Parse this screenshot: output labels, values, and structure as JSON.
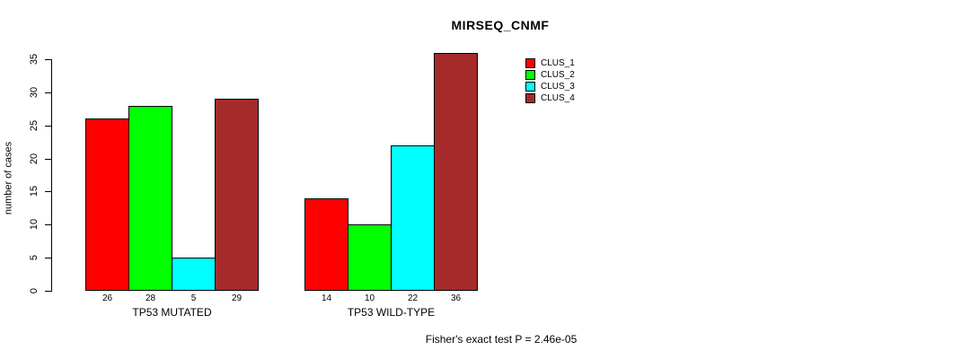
{
  "chart_data": {
    "type": "bar",
    "title": "MIRSEQ_CNMF",
    "xlabel": "",
    "ylabel": "number of cases",
    "ylim": [
      0,
      36
    ],
    "yticks": [
      0,
      5,
      10,
      15,
      20,
      25,
      30,
      35
    ],
    "grid": false,
    "legend_position": "top-right",
    "categories": [
      "TP53 MUTATED",
      "TP53 WILD-TYPE"
    ],
    "series": [
      {
        "name": "CLUS_1",
        "color": "#FF0000",
        "values": [
          26,
          14
        ]
      },
      {
        "name": "CLUS_2",
        "color": "#00FF00",
        "values": [
          28,
          10
        ]
      },
      {
        "name": "CLUS_3",
        "color": "#00FFFF",
        "values": [
          5,
          22
        ]
      },
      {
        "name": "CLUS_4",
        "color": "#A52A2A",
        "values": [
          29,
          36
        ]
      }
    ],
    "bar_value_labels": [
      [
        26,
        28,
        5,
        29
      ],
      [
        14,
        10,
        22,
        36
      ]
    ],
    "annotation": "Fisher's exact test P = 2.46e-05"
  },
  "colors": {
    "axis": "#000000",
    "text": "#000000",
    "background": "#FFFFFF"
  }
}
